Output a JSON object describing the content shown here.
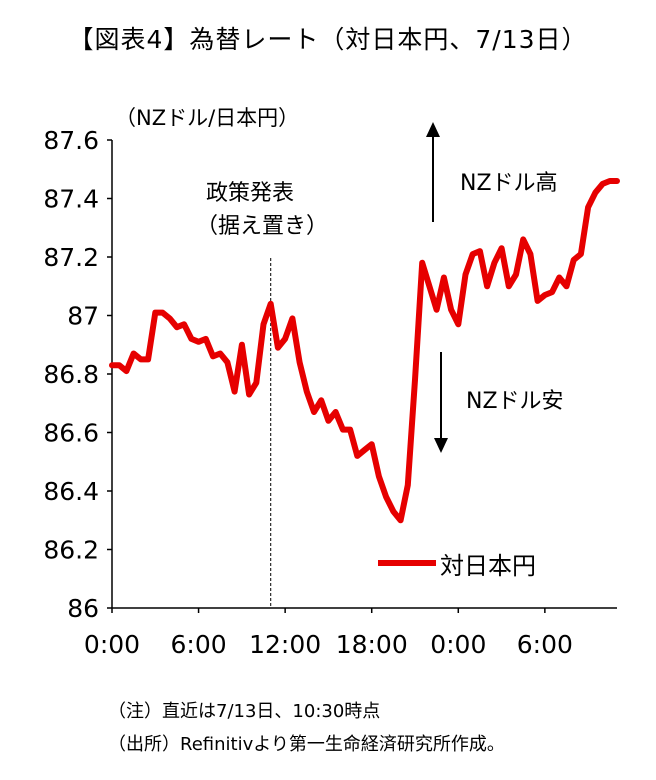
{
  "title": "【図表4】為替レート（対日本円、7/13日）",
  "unit_label": "（NZドル/日本円）",
  "annotations": {
    "policy_line1": "政策発表",
    "policy_line2": "（据え置き）",
    "up_label": "NZドル高",
    "down_label": "NZドル安"
  },
  "notes": {
    "note1": "（注）直近は7/13日、10:30時点",
    "note2": "（出所）Refinitivより第一生命経済研究所作成。"
  },
  "colors": {
    "series": "#e60000",
    "axis": "#000000",
    "marker": "#000000"
  },
  "chart_data": {
    "type": "line",
    "ylim": [
      86,
      87.6
    ],
    "yticks": [
      "86",
      "86.2",
      "86.4",
      "86.6",
      "86.8",
      "87",
      "87.2",
      "87.4",
      "87.6"
    ],
    "xlim": [
      0,
      35
    ],
    "xticks": [
      "0:00",
      "6:00",
      "12:00",
      "18:00",
      "0:00",
      "6:00"
    ],
    "xtick_positions": [
      0,
      6,
      12,
      18,
      24,
      30
    ],
    "event_x": 11,
    "grid": false,
    "legend_position": "bottom-right",
    "series": [
      {
        "name": "対日本円",
        "x": [
          0,
          0.5,
          1,
          1.5,
          2,
          2.5,
          3,
          3.5,
          4,
          4.5,
          5,
          5.5,
          6,
          6.5,
          7,
          7.5,
          8,
          8.5,
          9,
          9.5,
          10,
          10.5,
          11,
          11.5,
          12,
          12.5,
          13,
          13.5,
          14,
          14.5,
          15,
          15.5,
          16,
          16.5,
          17,
          17.5,
          18,
          18.5,
          19,
          19.5,
          20,
          20.5,
          21,
          21.5,
          22,
          22.5,
          23,
          23.5,
          24,
          24.5,
          25,
          25.5,
          26,
          26.5,
          27,
          27.5,
          28,
          28.5,
          29,
          29.5,
          30,
          30.5,
          31,
          31.5,
          32,
          32.5,
          33,
          33.5,
          34,
          34.5,
          35
        ],
        "values": [
          86.83,
          86.83,
          86.81,
          86.87,
          86.85,
          86.85,
          87.01,
          87.01,
          86.99,
          86.96,
          86.97,
          86.92,
          86.91,
          86.92,
          86.86,
          86.87,
          86.84,
          86.74,
          86.9,
          86.73,
          86.77,
          86.97,
          87.04,
          86.89,
          86.92,
          86.99,
          86.84,
          86.74,
          86.67,
          86.71,
          86.64,
          86.67,
          86.61,
          86.61,
          86.52,
          86.54,
          86.56,
          86.45,
          86.38,
          86.33,
          86.3,
          86.42,
          86.78,
          87.18,
          87.1,
          87.02,
          87.13,
          87.02,
          86.97,
          87.14,
          87.21,
          87.22,
          87.1,
          87.18,
          87.23,
          87.1,
          87.14,
          87.26,
          87.21,
          87.05,
          87.07,
          87.08,
          87.13,
          87.1,
          87.19,
          87.21,
          87.37,
          87.42,
          87.45,
          87.46,
          87.46
        ]
      }
    ]
  }
}
